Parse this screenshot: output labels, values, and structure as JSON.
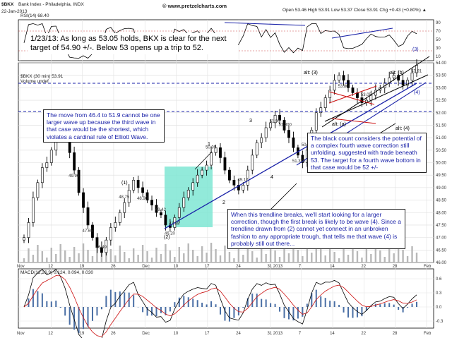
{
  "header": {
    "symbol": "$BKX",
    "name": "Bank Index - Philadelphia, INDX",
    "site": "© www.pretzelcharts.com",
    "date": "22-Jan-2013",
    "ohlc": "Open 53.46  High 53.91  Low 53.37  Close 53.91  Chg +0.43 (+0.80%) ▲"
  },
  "legend": {
    "rsi": "RSI(14) 68.40",
    "price": "$BKX (30 min) 53.91",
    "volume": "Volume undef",
    "macd": "MACD(12,26,9) 0.124, 0.094, 0.030"
  },
  "annotations": {
    "main": "1/23/13:  As long as 53.05 holds, BKX is clear for the next target of 54.90 +/-.  Below 53 opens up a trip to 52.",
    "wave_rule": "The move from 46.4 to 51.9 cannot be one larger wave up because the third wave in that case would be the shortest, which violates a cardinal rule of Elliott Wave.",
    "black_count": "The black count considers the potential of a complex fourth wave correction still unfolding, suggested with trade beneath 53.  The target for a fourth wave bottom in that case would be 52 +/-",
    "trendline": "When this trendline breaks, we'll start looking for a larger correction, though the first break is likely to be wave (4). Since a trendline drawn from (2) cannot yet connect in an unbroken fashion to any appropriate trough, that tells me that wave (4) is probably still out there..."
  },
  "wave_labels": {
    "l1": "(1)",
    "l2": "(2)",
    "l3": "(3)",
    "l4": "(4)",
    "a1": "1",
    "a2": "2",
    "a3": "3",
    "a4": "4",
    "altb": "alt: (b)",
    "alt3": "alt: (3)",
    "alta": "alt: (a)",
    "alt4": "alt: (4)"
  },
  "colors": {
    "blue": "#1a22a8",
    "red": "#cc1010",
    "highlight": "#7fe6d4",
    "candle": "#000000"
  },
  "chart_data": {
    "type": "line",
    "title": "",
    "xlabel": "",
    "ylabel": "",
    "x_ticks": [
      "Nov",
      "12",
      "19",
      "26",
      "Dec",
      "10",
      "17",
      "24",
      "31 2013",
      "7",
      "14",
      "22",
      "28",
      "Feb"
    ],
    "y_ticks": [
      "54.00",
      "53.50",
      "53.00",
      "52.50",
      "52.00",
      "51.50",
      "51.00",
      "50.50",
      "50.00",
      "49.50",
      "49.00",
      "48.50",
      "48.00",
      "47.50",
      "47.00",
      "46.50",
      "46.00"
    ],
    "ylim": [
      46.0,
      54.0
    ],
    "series": [
      {
        "values": [
          47.0,
          47.6,
          48.6,
          49.2,
          49.8,
          50.0,
          50.5,
          51.1,
          51.2,
          51.0,
          50.4,
          49.7,
          48.8,
          48.2,
          47.5,
          47.0,
          46.6,
          46.4,
          46.9,
          47.4,
          47.6,
          48.0,
          48.4,
          48.9,
          49.3,
          49.0,
          48.8,
          48.5,
          48.3,
          48.0,
          47.9,
          47.5,
          47.4,
          47.8,
          48.2,
          48.6,
          48.9,
          49.2,
          49.5,
          49.7,
          49.9,
          50.4,
          50.6,
          50.2,
          49.7,
          49.3,
          49.1,
          48.9,
          49.1,
          49.7,
          50.3,
          50.8,
          51.0,
          51.4,
          51.6,
          51.9,
          51.7,
          51.3,
          51.0,
          50.6,
          50.3,
          50.0,
          50.5,
          51.3,
          52.0,
          52.2,
          52.6,
          52.9,
          53.3,
          53.5,
          53.3,
          53.0,
          52.8,
          52.6,
          52.4,
          52.5,
          52.7,
          52.9,
          53.0,
          53.2,
          53.4,
          53.5,
          53.3,
          53.1,
          53.3,
          53.6,
          53.9
        ]
      }
    ],
    "data_labels": [
      "53.75",
      "49.90",
      "46.49",
      "47.65",
      "48.75",
      "48.90",
      "49.42",
      "47.88",
      "50.95",
      "46.20",
      "49.12",
      "51.90",
      "51.300",
      "51.370",
      "50.10",
      "53.80",
      "53.05",
      "53.91"
    ],
    "rsi_ticks": [
      "90",
      "70",
      "50",
      "30",
      "10"
    ],
    "macd_ticks": [
      "0.6",
      "0.3",
      "0.0",
      "-0.3"
    ],
    "grid": true
  }
}
